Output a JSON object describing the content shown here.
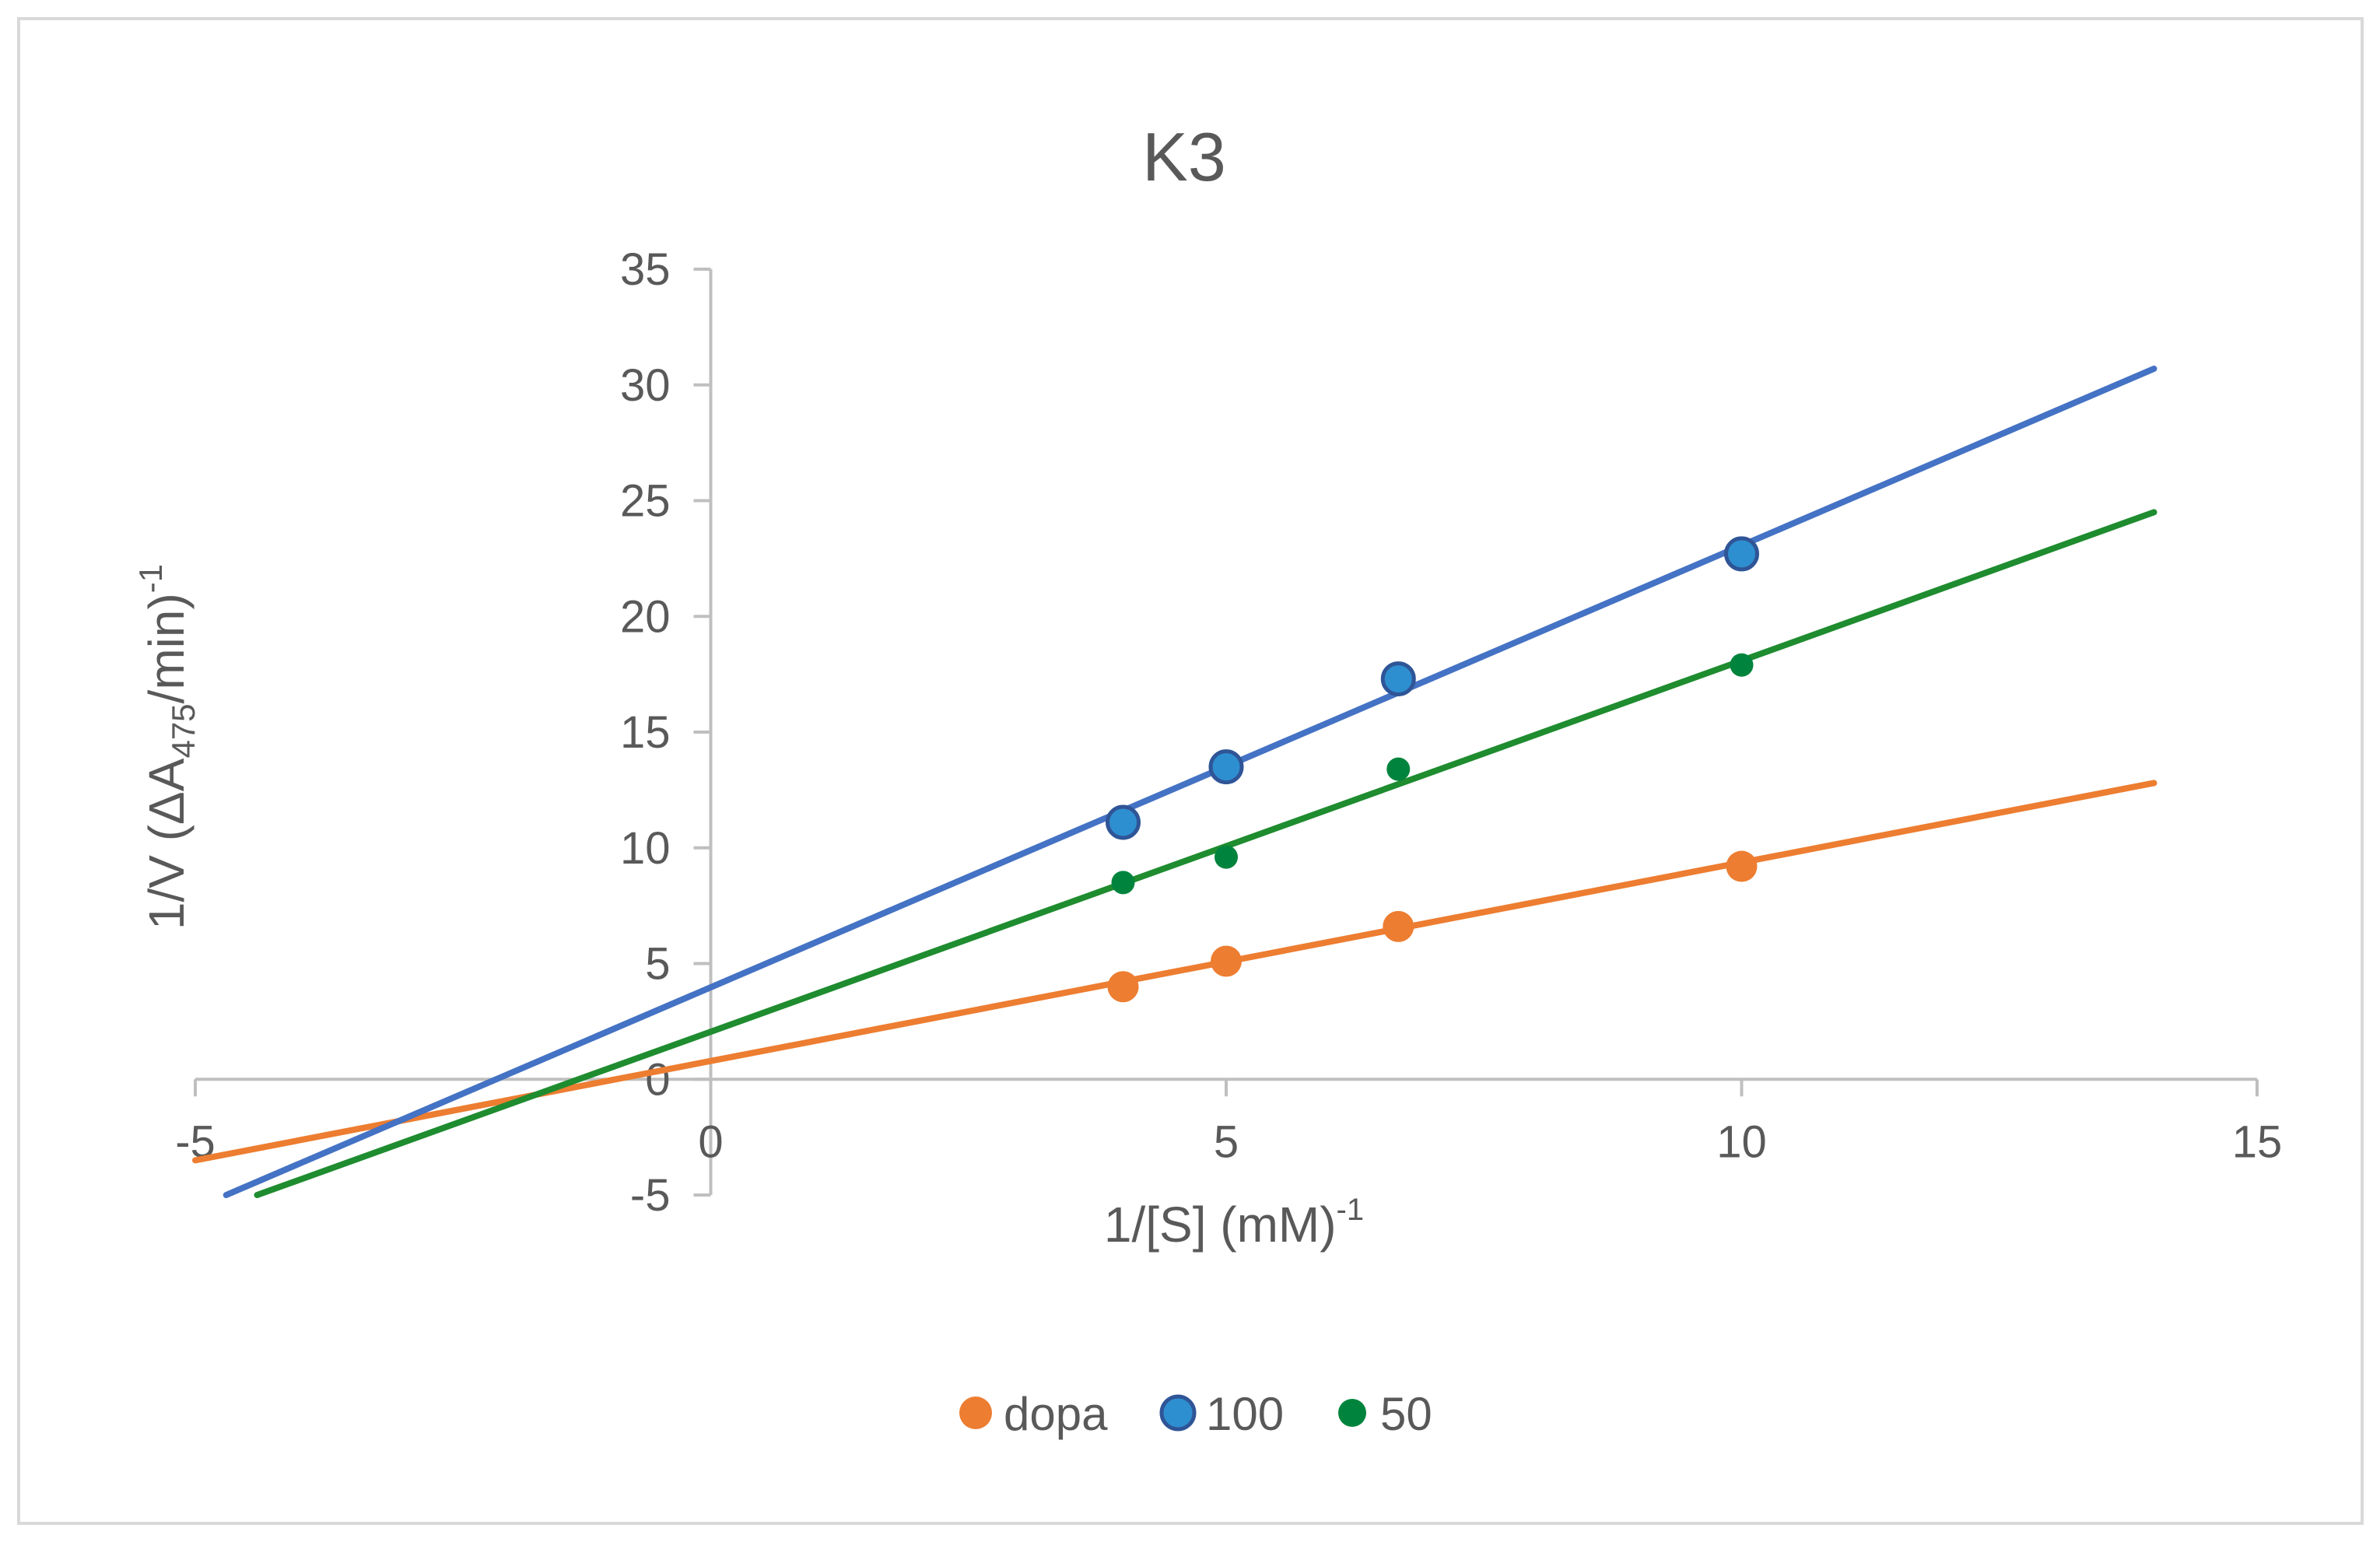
{
  "chart_data": {
    "type": "scatter",
    "title": "K3",
    "xlabel": {
      "main": "1/[S]  (mM)",
      "sup": "-1"
    },
    "ylabel": {
      "prefix": "1/V (ΔA",
      "sub": "475",
      "mid": "/min)",
      "sup": "-1"
    },
    "xlim": [
      -5,
      15
    ],
    "ylim": [
      -5,
      35
    ],
    "xticks": [
      -5,
      0,
      5,
      10,
      15
    ],
    "yticks": [
      -5,
      0,
      5,
      10,
      15,
      20,
      25,
      30,
      35
    ],
    "grid": false,
    "legend_position": "bottom",
    "series": [
      {
        "name": "dopa",
        "color": "#ED7D31",
        "marker": "large",
        "points": [
          [
            4,
            4.0
          ],
          [
            5,
            5.1
          ],
          [
            6.67,
            6.6
          ],
          [
            10,
            9.2
          ]
        ],
        "trendline": {
          "x0": -5,
          "y0": -3.5,
          "x1": 14,
          "y1": 12.8
        }
      },
      {
        "name": "100",
        "color": "#2E8FD0",
        "line_color": "#4472C4",
        "marker": "large-outlined",
        "points": [
          [
            4,
            11.1
          ],
          [
            5,
            13.5
          ],
          [
            6.67,
            17.3
          ],
          [
            10,
            22.7
          ]
        ],
        "trendline": {
          "x0": -4.7,
          "y0": -5,
          "x1": 14,
          "y1": 30.7
        }
      },
      {
        "name": "50",
        "color": "#00843D",
        "line_color": "#1E8C2F",
        "marker": "small",
        "points": [
          [
            4,
            8.5
          ],
          [
            5,
            9.6
          ],
          [
            6.67,
            13.4
          ],
          [
            10,
            17.9
          ]
        ],
        "trendline": {
          "x0": -4.4,
          "y0": -5,
          "x1": 14,
          "y1": 24.5
        }
      }
    ]
  }
}
